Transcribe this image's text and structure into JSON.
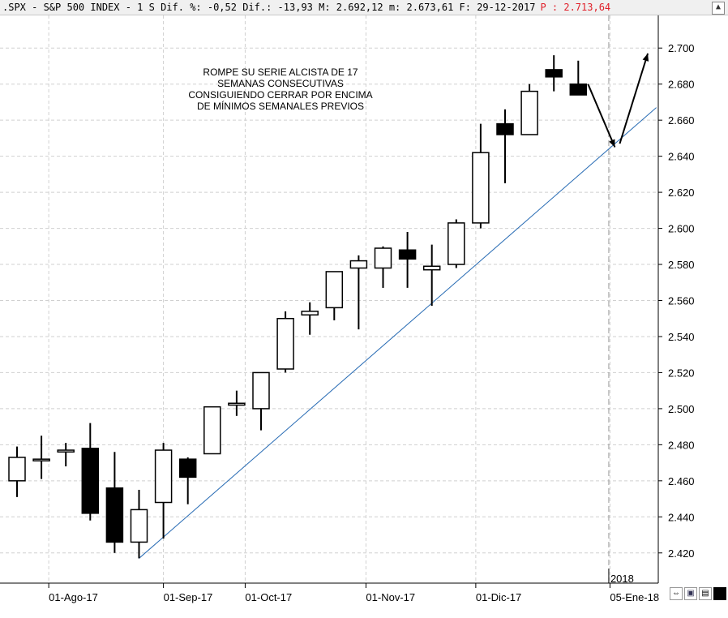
{
  "header": {
    "text": ".SPX - S&P 500 INDEX -  1 S Dif. %: -0,52 Dif.: -13,93 M: 2.692,12 m: 2.673,61 F: 29-12-2017",
    "projected": "P : 2.713,64",
    "collapse_icon": "chevron-up-icon"
  },
  "annotation": {
    "lines": [
      "ROMPE SU SERIE ALCISTA DE 17",
      "SEMANAS CONSECUTIVAS",
      "CONSIGUIENDO CERRAR POR ENCIMA",
      "DE MÍNIMOS SEMANALES PREVIOS"
    ]
  },
  "chart_data": {
    "type": "candlestick",
    "title": ".SPX - S&P 500 INDEX - 1 S",
    "ylim": [
      2410,
      2710
    ],
    "yticks": [
      2420,
      2440,
      2460,
      2480,
      2500,
      2520,
      2540,
      2560,
      2580,
      2600,
      2620,
      2640,
      2660,
      2680,
      2700
    ],
    "ytick_labels": [
      "2.420",
      "2.440",
      "2.460",
      "2.480",
      "2.500",
      "2.520",
      "2.540",
      "2.560",
      "2.580",
      "2.600",
      "2.620",
      "2.640",
      "2.660",
      "2.680",
      "2.700"
    ],
    "xtick_labels": [
      "01-Ago-17",
      "01-Sep-17",
      "01-Oct-17",
      "01-Nov-17",
      "01-Dic-17",
      "05-Ene-18"
    ],
    "xtick_weeks": [
      1.3,
      6,
      9.35,
      14.3,
      18.8,
      24.3
    ],
    "year_marker": {
      "label": "2018",
      "week": 24.45
    },
    "grid": true,
    "candles": [
      {
        "open": 2460,
        "high": 2479,
        "low": 2451,
        "close": 2473
      },
      {
        "open": 2472,
        "high": 2485,
        "low": 2461,
        "close": 2472
      },
      {
        "open": 2476,
        "high": 2481,
        "low": 2468,
        "close": 2477
      },
      {
        "open": 2478,
        "high": 2492,
        "low": 2438,
        "close": 2442
      },
      {
        "open": 2456,
        "high": 2476,
        "low": 2420,
        "close": 2426
      },
      {
        "open": 2426,
        "high": 2455,
        "low": 2417,
        "close": 2444
      },
      {
        "open": 2448,
        "high": 2481,
        "low": 2428,
        "close": 2477
      },
      {
        "open": 2472,
        "high": 2473,
        "low": 2447,
        "close": 2462
      },
      {
        "open": 2475,
        "high": 2500,
        "low": 2475,
        "close": 2501
      },
      {
        "open": 2502,
        "high": 2510,
        "low": 2496,
        "close": 2503
      },
      {
        "open": 2500,
        "high": 2520,
        "low": 2488,
        "close": 2520
      },
      {
        "open": 2522,
        "high": 2554,
        "low": 2520,
        "close": 2550
      },
      {
        "open": 2552,
        "high": 2559,
        "low": 2541,
        "close": 2554
      },
      {
        "open": 2556,
        "high": 2576,
        "low": 2549,
        "close": 2576
      },
      {
        "open": 2578,
        "high": 2585,
        "low": 2544,
        "close": 2582
      },
      {
        "open": 2578,
        "high": 2590,
        "low": 2567,
        "close": 2589
      },
      {
        "open": 2588,
        "high": 2598,
        "low": 2567,
        "close": 2583
      },
      {
        "open": 2577,
        "high": 2591,
        "low": 2557,
        "close": 2579
      },
      {
        "open": 2580,
        "high": 2605,
        "low": 2578,
        "close": 2603
      },
      {
        "open": 2603,
        "high": 2658,
        "low": 2600,
        "close": 2642
      },
      {
        "open": 2658,
        "high": 2666,
        "low": 2625,
        "close": 2652
      },
      {
        "open": 2652,
        "high": 2680,
        "low": 2652,
        "close": 2676
      },
      {
        "open": 2688,
        "high": 2696,
        "low": 2676,
        "close": 2684
      },
      {
        "open": 2680,
        "high": 2693,
        "low": 2674,
        "close": 2674
      }
    ],
    "trendline": {
      "from": {
        "week": 5.0,
        "value": 2417
      },
      "to": {
        "week": 26.2,
        "value": 2667
      },
      "color": "#2a6db5"
    },
    "arrows": [
      {
        "from": {
          "week": 23.4,
          "value": 2680
        },
        "to": {
          "week": 24.5,
          "value": 2645
        }
      },
      {
        "from": {
          "week": 24.7,
          "value": 2647
        },
        "to": {
          "week": 25.85,
          "value": 2697
        }
      }
    ]
  },
  "toolbar": {
    "icons": [
      "expand-icon",
      "save-icon",
      "print-icon",
      "color-square-icon"
    ]
  }
}
